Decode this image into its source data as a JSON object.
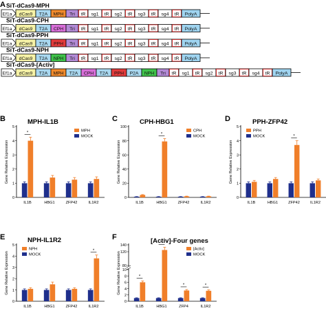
{
  "panel_letters": [
    "A",
    "B",
    "C",
    "D",
    "E",
    "F"
  ],
  "constructs": [
    {
      "title": "SiT-dCas9-MPH",
      "parts": [
        {
          "label": "Ef1a",
          "color": "#ffffff"
        },
        {
          "label": "dCas9",
          "color": "#f6f2a6"
        },
        {
          "label": "T2A",
          "color": "#a9d8f0"
        },
        {
          "label": "MPH",
          "color": "#f08a2c"
        },
        {
          "label": "Tri",
          "color": "#b38ad6"
        },
        {
          "label": "tR",
          "color": "#ffffff"
        },
        {
          "label": "sg1",
          "color": "#ffffff"
        },
        {
          "label": "tR",
          "color": "#ffffff"
        },
        {
          "label": "sg2",
          "color": "#ffffff"
        },
        {
          "label": "tR",
          "color": "#ffffff"
        },
        {
          "label": "sg3",
          "color": "#ffffff"
        },
        {
          "label": "tR",
          "color": "#ffffff"
        },
        {
          "label": "sg4",
          "color": "#ffffff"
        },
        {
          "label": "tR",
          "color": "#ffffff"
        },
        {
          "label": "PolyA",
          "color": "#9fd4f0"
        }
      ]
    },
    {
      "title": "SiT-dCas9-CPH",
      "parts": [
        {
          "label": "Ef1a",
          "color": "#ffffff"
        },
        {
          "label": "dCas9",
          "color": "#f6f2a6"
        },
        {
          "label": "T2A",
          "color": "#a9d8f0"
        },
        {
          "label": "CPH",
          "color": "#d86fd9"
        },
        {
          "label": "Tri",
          "color": "#b38ad6"
        },
        {
          "label": "tR",
          "color": "#ffffff"
        },
        {
          "label": "sg1",
          "color": "#ffffff"
        },
        {
          "label": "tR",
          "color": "#ffffff"
        },
        {
          "label": "sg2",
          "color": "#ffffff"
        },
        {
          "label": "tR",
          "color": "#ffffff"
        },
        {
          "label": "sg3",
          "color": "#ffffff"
        },
        {
          "label": "tR",
          "color": "#ffffff"
        },
        {
          "label": "sg4",
          "color": "#ffffff"
        },
        {
          "label": "tR",
          "color": "#ffffff"
        },
        {
          "label": "PolyA",
          "color": "#9fd4f0"
        }
      ]
    },
    {
      "title": "SiT-dCas9-PPH",
      "parts": [
        {
          "label": "Ef1a",
          "color": "#ffffff"
        },
        {
          "label": "dCas9",
          "color": "#f6f2a6"
        },
        {
          "label": "T2A",
          "color": "#a9d8f0"
        },
        {
          "label": "PPH",
          "color": "#e23b3b"
        },
        {
          "label": "Tri",
          "color": "#b38ad6"
        },
        {
          "label": "tR",
          "color": "#ffffff"
        },
        {
          "label": "sg1",
          "color": "#ffffff"
        },
        {
          "label": "tR",
          "color": "#ffffff"
        },
        {
          "label": "sg2",
          "color": "#ffffff"
        },
        {
          "label": "tR",
          "color": "#ffffff"
        },
        {
          "label": "sg3",
          "color": "#ffffff"
        },
        {
          "label": "tR",
          "color": "#ffffff"
        },
        {
          "label": "sg4",
          "color": "#ffffff"
        },
        {
          "label": "tR",
          "color": "#ffffff"
        },
        {
          "label": "PolyA",
          "color": "#9fd4f0"
        }
      ]
    },
    {
      "title": "SiT-dCas9-NPH",
      "parts": [
        {
          "label": "Ef1a",
          "color": "#ffffff"
        },
        {
          "label": "dCas9",
          "color": "#f6f2a6"
        },
        {
          "label": "T2A",
          "color": "#a9d8f0"
        },
        {
          "label": "NPH",
          "color": "#3fc24a"
        },
        {
          "label": "Tri",
          "color": "#b38ad6"
        },
        {
          "label": "tR",
          "color": "#ffffff"
        },
        {
          "label": "sg1",
          "color": "#ffffff"
        },
        {
          "label": "tR",
          "color": "#ffffff"
        },
        {
          "label": "sg2",
          "color": "#ffffff"
        },
        {
          "label": "tR",
          "color": "#ffffff"
        },
        {
          "label": "sg3",
          "color": "#ffffff"
        },
        {
          "label": "tR",
          "color": "#ffffff"
        },
        {
          "label": "sg4",
          "color": "#ffffff"
        },
        {
          "label": "tR",
          "color": "#ffffff"
        },
        {
          "label": "PolyA",
          "color": "#9fd4f0"
        }
      ]
    },
    {
      "title": "SiT-dCas9-[Activ]",
      "parts": [
        {
          "label": "Ef1a",
          "color": "#ffffff"
        },
        {
          "label": "dCas9",
          "color": "#f6f2a6"
        },
        {
          "label": "T2A",
          "color": "#a9d8f0"
        },
        {
          "label": "MPH",
          "color": "#f08a2c"
        },
        {
          "label": "T2A",
          "color": "#a9d8f0"
        },
        {
          "label": "CPH",
          "color": "#d86fd9"
        },
        {
          "label": "T2A",
          "color": "#a9d8f0"
        },
        {
          "label": "PPH",
          "color": "#e23b3b"
        },
        {
          "label": "P2A",
          "color": "#a9d8f0"
        },
        {
          "label": "NPH",
          "color": "#3fc24a"
        },
        {
          "label": "Tri",
          "color": "#b38ad6"
        },
        {
          "label": "tR",
          "color": "#ffffff"
        },
        {
          "label": "sg1",
          "color": "#ffffff"
        },
        {
          "label": "tR",
          "color": "#ffffff"
        },
        {
          "label": "sg2",
          "color": "#ffffff"
        },
        {
          "label": "tR",
          "color": "#ffffff"
        },
        {
          "label": "sg3",
          "color": "#ffffff"
        },
        {
          "label": "tR",
          "color": "#ffffff"
        },
        {
          "label": "sg4",
          "color": "#ffffff"
        },
        {
          "label": "tR",
          "color": "#ffffff"
        },
        {
          "label": "PolyA",
          "color": "#9fd4f0"
        }
      ]
    }
  ],
  "chart_data": [
    {
      "panel": "B",
      "type": "bar",
      "title": "MPH-IL1B",
      "ylabel": "Gene Relative Expression",
      "categories": [
        "IL1B",
        "HBG1",
        "ZFP42",
        "IL1R2"
      ],
      "ylim": [
        0,
        5
      ],
      "yticks": [
        "0",
        "1",
        "2",
        "3",
        "4",
        "5"
      ],
      "series": [
        {
          "name": "MPH",
          "color": "#f07f2a",
          "values": [
            4.0,
            1.4,
            1.25,
            1.3
          ],
          "errors": [
            0.25,
            0.15,
            0.15,
            0.15
          ]
        },
        {
          "name": "MOCK",
          "color": "#1f2f8c",
          "values": [
            1.0,
            1.0,
            1.0,
            1.0
          ],
          "errors": [
            0.1,
            0.1,
            0.1,
            0.1
          ]
        }
      ],
      "annotations": [
        {
          "category": "IL1B",
          "text": "*"
        }
      ],
      "legend": "top-right"
    },
    {
      "panel": "C",
      "type": "bar",
      "title": "CPH-HBG1",
      "ylabel": "Gene Relative Expression",
      "categories": [
        "IL1B",
        "HBG1",
        "ZFP42",
        "IL1R2"
      ],
      "ylim": [
        0,
        100
      ],
      "yticks": [
        "0",
        "20",
        "40",
        "60",
        "80",
        "100"
      ],
      "series": [
        {
          "name": "CPH",
          "color": "#f07f2a",
          "values": [
            3.5,
            79,
            1.5,
            1.5
          ],
          "errors": [
            0.5,
            4,
            0.3,
            0.3
          ]
        },
        {
          "name": "MOCK",
          "color": "#1f2f8c",
          "values": [
            1.0,
            1.0,
            1.0,
            1.0
          ],
          "errors": [
            0.2,
            0.2,
            0.2,
            0.2
          ]
        }
      ],
      "annotations": [
        {
          "category": "HBG1",
          "text": "*"
        }
      ],
      "legend": "top-right"
    },
    {
      "panel": "D",
      "type": "bar",
      "title": "PPH-ZFP42",
      "ylabel": "Gene Relative Expression",
      "categories": [
        "IL1B",
        "HBG1",
        "ZFP42",
        "IL1R2"
      ],
      "ylim": [
        0,
        5
      ],
      "yticks": [
        "0",
        "1",
        "2",
        "3",
        "4",
        "5"
      ],
      "series": [
        {
          "name": "PPH",
          "color": "#f07f2a",
          "values": [
            1.1,
            1.3,
            3.7,
            1.2
          ],
          "errors": [
            0.1,
            0.1,
            0.3,
            0.1
          ]
        },
        {
          "name": "MOCK",
          "color": "#1f2f8c",
          "values": [
            1.0,
            1.0,
            1.0,
            1.0
          ],
          "errors": [
            0.1,
            0.1,
            0.1,
            0.1
          ]
        }
      ],
      "annotations": [
        {
          "category": "ZFP42",
          "text": "*"
        }
      ],
      "legend": "top-left"
    },
    {
      "panel": "E",
      "type": "bar",
      "title": "NPH-IL1R2",
      "ylabel": "Gene Relative Expression",
      "categories": [
        "IL1B",
        "HBG1",
        "ZFP42",
        "IL1R2"
      ],
      "ylim": [
        0,
        5
      ],
      "yticks": [
        "0",
        "1",
        "2",
        "3",
        "4",
        "5"
      ],
      "series": [
        {
          "name": "NPH",
          "color": "#f07f2a",
          "values": [
            1.1,
            1.5,
            1.1,
            3.8
          ],
          "errors": [
            0.1,
            0.2,
            0.1,
            0.3
          ]
        },
        {
          "name": "MOCK",
          "color": "#1f2f8c",
          "values": [
            1.0,
            1.0,
            1.0,
            1.0
          ],
          "errors": [
            0.1,
            0.1,
            0.1,
            0.1
          ]
        }
      ],
      "annotations": [
        {
          "category": "IL1R2",
          "text": "*"
        }
      ],
      "legend": "top-left"
    },
    {
      "panel": "F",
      "type": "bar",
      "title": "[Activ]-Four genes",
      "ylabel": "Gene Relative Expression",
      "categories": [
        "IL1B",
        "HBG1",
        "ZFP4",
        "IL1R2"
      ],
      "ylim": [
        0,
        140
      ],
      "axis_break": [
        10,
        80
      ],
      "yticks": [
        "0",
        "2",
        "4",
        "6",
        "8",
        "10",
        "80",
        "120",
        "140"
      ],
      "series": [
        {
          "name": "[Activ]",
          "color": "#f07f2a",
          "values": [
            6.0,
            125,
            3.4,
            3.3
          ],
          "errors": [
            0.4,
            8,
            0.3,
            0.3
          ]
        },
        {
          "name": "MOCK",
          "color": "#1f2f8c",
          "values": [
            1.0,
            1.0,
            1.0,
            1.0
          ],
          "errors": [
            0.1,
            0.1,
            0.1,
            0.1
          ]
        }
      ],
      "annotations": [
        {
          "category": "IL1B",
          "text": "*"
        },
        {
          "category": "HBG1",
          "text": "*"
        },
        {
          "category": "ZFP4",
          "text": "*"
        },
        {
          "category": "IL1R2",
          "text": "*"
        }
      ],
      "legend": "top-right"
    }
  ]
}
